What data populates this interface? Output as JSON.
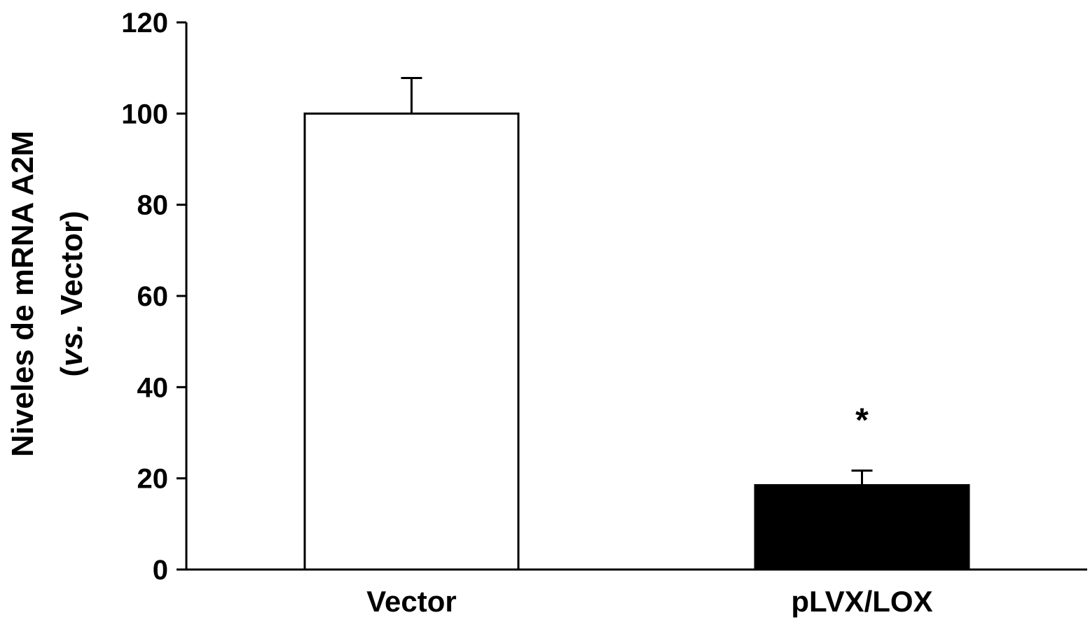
{
  "chart_data": {
    "type": "bar",
    "categories": [
      "Vector",
      "pLVX/LOX"
    ],
    "values": [
      100,
      18.5
    ],
    "errors": [
      7.8,
      3.2
    ],
    "bar_fills": [
      "#ffffff",
      "#000000"
    ],
    "annotations": [
      {
        "category": "pLVX/LOX",
        "text": "*"
      }
    ],
    "ylabel_line1": "Niveles de mRNA A2M",
    "ylabel_line2_open": "(",
    "ylabel_line2_italic": "vs.",
    "ylabel_line2_rest": " Vector)",
    "ylim": [
      0,
      120
    ],
    "yticks": [
      0,
      20,
      40,
      60,
      80,
      100,
      120
    ],
    "grid": false
  }
}
